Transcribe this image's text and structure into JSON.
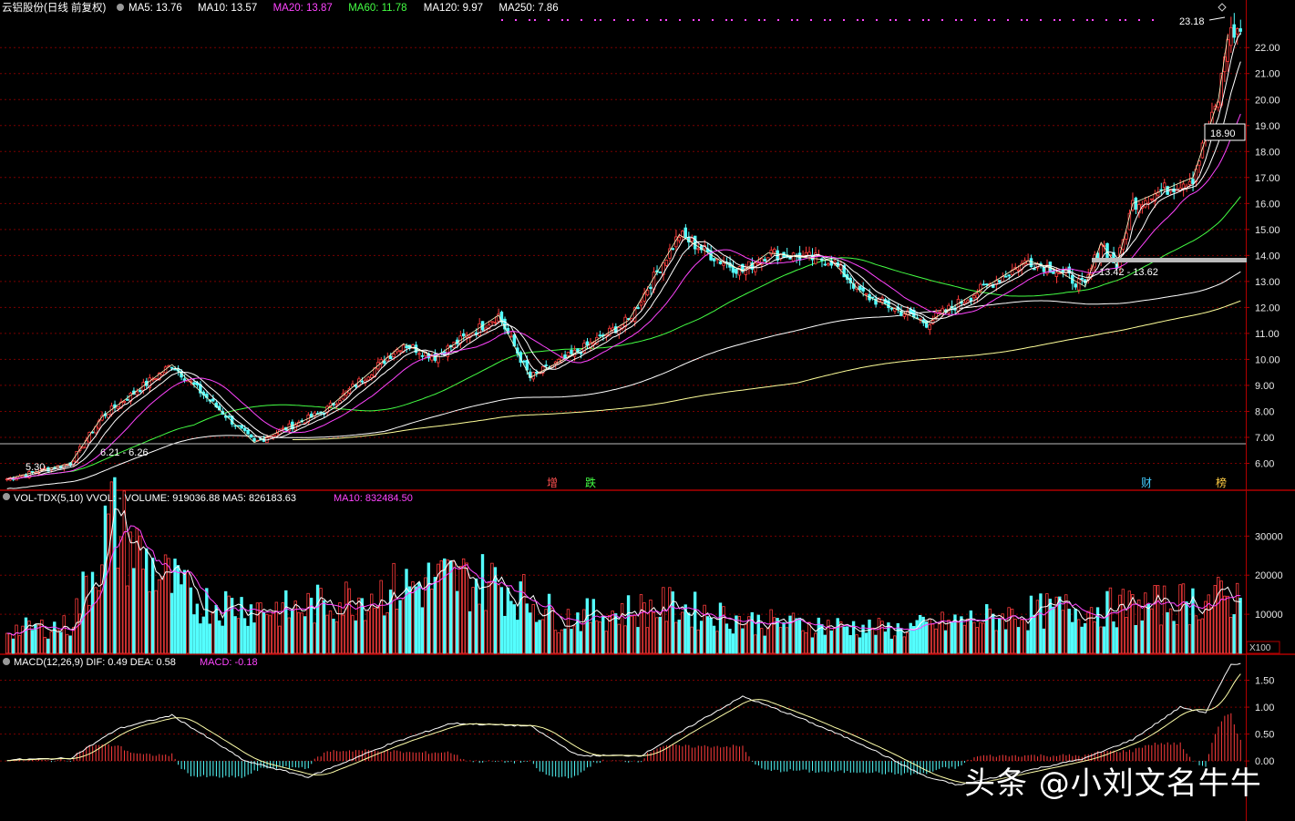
{
  "stock": {
    "name_label": "云铝股份(日线 前复权)",
    "ma_labels": [
      {
        "text": "MA5: 13.76",
        "color": "#ffffff"
      },
      {
        "text": "MA10: 13.57",
        "color": "#ffffff"
      },
      {
        "text": "MA20: 13.87",
        "color": "#ff44ff"
      },
      {
        "text": "MA60: 11.78",
        "color": "#44ff44"
      },
      {
        "text": "MA120: 9.97",
        "color": "#ffffff"
      },
      {
        "text": "MA250: 7.86",
        "color": "#ffffff"
      }
    ],
    "annotations": {
      "high": "23.18",
      "cursor_price": "18.90",
      "low": "5.30",
      "early_range": "6.21 - 6.26",
      "range_mark": "13.42 - 13.62"
    },
    "events": [
      {
        "label": "增",
        "color": "#ff5050"
      },
      {
        "label": "跌",
        "color": "#44ff44"
      },
      {
        "label": "财",
        "color": "#44ccff"
      },
      {
        "label": "榜",
        "color": "#ffcc44"
      }
    ]
  },
  "volume": {
    "label": "VOL-TDX(5,10) VVOL: - VOLUME: 919036.88 MA5: 826183.63",
    "ma10_label": "MA10: 832484.50",
    "unit": "X100"
  },
  "macd": {
    "label": "MACD(12,26,9) DIF: 0.49 DEA: 0.58",
    "macd_label": "MACD: -0.18"
  },
  "watermark": "头条 @小刘文名牛牛",
  "colors": {
    "up": "#ff3c3c",
    "down": "#54ffff",
    "grid": "#7a0000",
    "axis": "#b00000"
  },
  "chart_data": [
    {
      "type": "candlestick",
      "ylim": [
        5,
        23.2
      ],
      "yticks": [
        "6.00",
        "7.00",
        "8.00",
        "9.00",
        "10.00",
        "11.00",
        "12.00",
        "13.00",
        "14.00",
        "15.00",
        "16.00",
        "17.00",
        "18.00",
        "19.00",
        "20.00",
        "21.00",
        "22.00"
      ],
      "close_keypoints": [
        [
          0,
          5.4
        ],
        [
          20,
          6.0
        ],
        [
          30,
          7.8
        ],
        [
          52,
          9.8
        ],
        [
          78,
          6.8
        ],
        [
          100,
          8.0
        ],
        [
          125,
          10.6
        ],
        [
          135,
          10.1
        ],
        [
          155,
          11.7
        ],
        [
          165,
          9.3
        ],
        [
          180,
          10.3
        ],
        [
          196,
          11.5
        ],
        [
          212,
          14.8
        ],
        [
          225,
          13.8
        ],
        [
          232,
          13.4
        ],
        [
          240,
          14.1
        ],
        [
          260,
          13.8
        ],
        [
          270,
          12.5
        ],
        [
          290,
          11.4
        ],
        [
          298,
          12.0
        ],
        [
          322,
          13.8
        ],
        [
          330,
          13.5
        ],
        [
          340,
          12.8
        ],
        [
          345,
          14.5
        ],
        [
          350,
          13.6
        ],
        [
          355,
          16.0
        ],
        [
          370,
          16.8
        ],
        [
          374,
          17.0
        ],
        [
          382,
          20.0
        ],
        [
          385,
          22.5
        ]
      ],
      "series": [
        {
          "name": "MA5",
          "color": "#ffffff"
        },
        {
          "name": "MA10",
          "color": "#ffffff"
        },
        {
          "name": "MA20",
          "color": "#ff44ff"
        },
        {
          "name": "MA60",
          "color": "#44ff44"
        },
        {
          "name": "MA120",
          "color": "#ffffff"
        },
        {
          "name": "MA250",
          "color": "#ffff99"
        }
      ]
    },
    {
      "type": "bar",
      "yticks": [
        "10000",
        "20000",
        "30000"
      ],
      "ylim": [
        0,
        38000
      ],
      "keypoints": [
        [
          0,
          6000
        ],
        [
          20,
          7000
        ],
        [
          33,
          34000
        ],
        [
          45,
          22000
        ],
        [
          60,
          13000
        ],
        [
          90,
          11000
        ],
        [
          120,
          16000
        ],
        [
          140,
          19000
        ],
        [
          155,
          18000
        ],
        [
          175,
          9000
        ],
        [
          210,
          12000
        ],
        [
          235,
          8000
        ],
        [
          260,
          7000
        ],
        [
          280,
          6000
        ],
        [
          300,
          8000
        ],
        [
          330,
          11000
        ],
        [
          360,
          12000
        ],
        [
          385,
          14000
        ]
      ]
    },
    {
      "type": "bar",
      "yticks": [
        "0.00",
        "0.50",
        "1.00",
        "1.50"
      ],
      "ylim": [
        -1.1,
        1.95
      ],
      "dif_keypoints": [
        [
          0,
          0.02
        ],
        [
          20,
          0.05
        ],
        [
          35,
          0.6
        ],
        [
          52,
          0.85
        ],
        [
          75,
          0.0
        ],
        [
          95,
          -0.3
        ],
        [
          120,
          0.3
        ],
        [
          140,
          0.7
        ],
        [
          165,
          0.65
        ],
        [
          180,
          0.1
        ],
        [
          200,
          0.1
        ],
        [
          220,
          0.8
        ],
        [
          232,
          1.2
        ],
        [
          250,
          0.8
        ],
        [
          270,
          0.3
        ],
        [
          290,
          -0.3
        ],
        [
          300,
          -0.45
        ],
        [
          320,
          -0.2
        ],
        [
          340,
          0.05
        ],
        [
          355,
          0.4
        ],
        [
          370,
          1.0
        ],
        [
          378,
          0.9
        ],
        [
          386,
          1.8
        ]
      ]
    }
  ]
}
